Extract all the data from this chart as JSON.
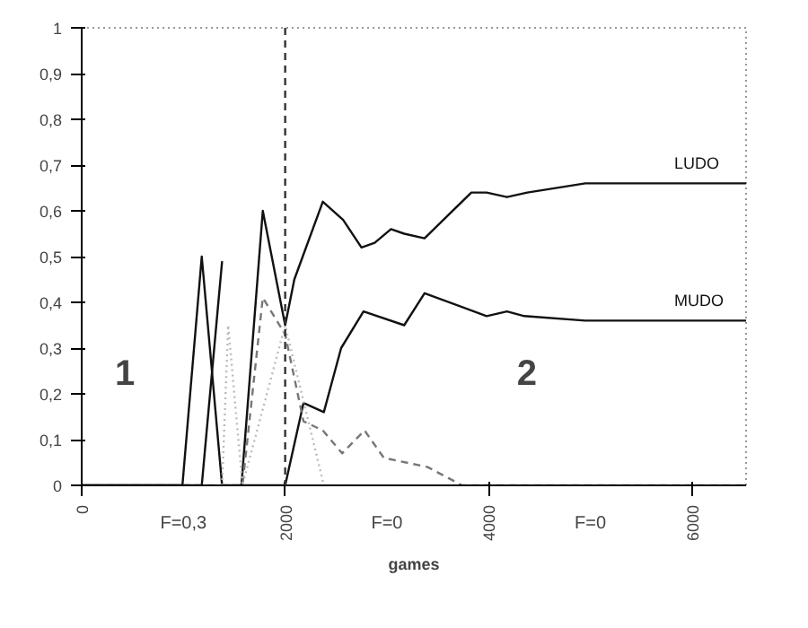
{
  "chart_data": {
    "type": "line",
    "xlabel": "games",
    "xlim": [
      0,
      6530
    ],
    "ylim": [
      0,
      1
    ],
    "xticks": [
      0,
      2000,
      4000,
      6000
    ],
    "yticks": [
      0,
      {
        "value": 0.1,
        "label": "0,1"
      },
      {
        "value": 0.2,
        "label": "0,2"
      },
      {
        "value": 0.3,
        "label": "0,3"
      },
      {
        "value": 0.4,
        "label": "0,4"
      },
      {
        "value": 0.5,
        "label": "0,5"
      },
      {
        "value": 0.6,
        "label": "0,6"
      },
      {
        "value": 0.7,
        "label": "0,7"
      },
      {
        "value": 0.8,
        "label": "0,8"
      },
      {
        "value": 0.9,
        "label": "0,9"
      },
      1
    ],
    "grid": false,
    "marker": "none",
    "series": [
      {
        "name": "LUDO",
        "color": "#111111",
        "line_style": "solid",
        "x": [
          0,
          990,
          1180,
          1380,
          1570,
          1780,
          2000,
          2090,
          2370,
          2570,
          2750,
          2880,
          3040,
          3170,
          3370,
          3830,
          3980,
          4180,
          4380,
          4950,
          6530
        ],
        "values": [
          0,
          0,
          0.5,
          0,
          0,
          0.6,
          0.35,
          0.45,
          0.62,
          0.58,
          0.52,
          0.53,
          0.56,
          0.55,
          0.54,
          0.64,
          0.64,
          0.63,
          0.64,
          0.66,
          0.66
        ]
      },
      {
        "name": "MUDO",
        "color": "#111111",
        "line_style": "solid",
        "x": [
          0,
          1180,
          1380,
          1390,
          1570,
          2000,
          2180,
          2380,
          2550,
          2770,
          3170,
          3370,
          3980,
          4180,
          4350,
          4950,
          6530
        ],
        "values": [
          0,
          0,
          0.49,
          null,
          0,
          0,
          0.18,
          0.16,
          0.3,
          0.38,
          0.35,
          0.42,
          0.37,
          0.38,
          0.37,
          0.36,
          0.36
        ]
      },
      {
        "color": "#777777",
        "line_style": "dashed",
        "x": [
          0,
          1580,
          1780,
          2000,
          2180,
          2370,
          2560,
          2780,
          2970,
          3400,
          3740,
          6530
        ],
        "values": [
          0,
          0,
          0.41,
          0.33,
          0.14,
          0.12,
          0.07,
          0.12,
          0.06,
          0.04,
          0,
          0
        ]
      },
      {
        "color": "#bbbbbb",
        "line_style": "dotted",
        "x": [
          1380,
          1440,
          1580,
          2000,
          2380,
          2750
        ],
        "values": [
          0,
          0.35,
          0,
          0.35,
          0,
          0
        ]
      }
    ],
    "ref_lines": [
      {
        "axis": "x",
        "value": 2000,
        "color": "#333333",
        "line_style": "dashed"
      }
    ],
    "annotations": [
      "1",
      "2",
      "F=0,3",
      "F=0",
      "F=0"
    ]
  }
}
